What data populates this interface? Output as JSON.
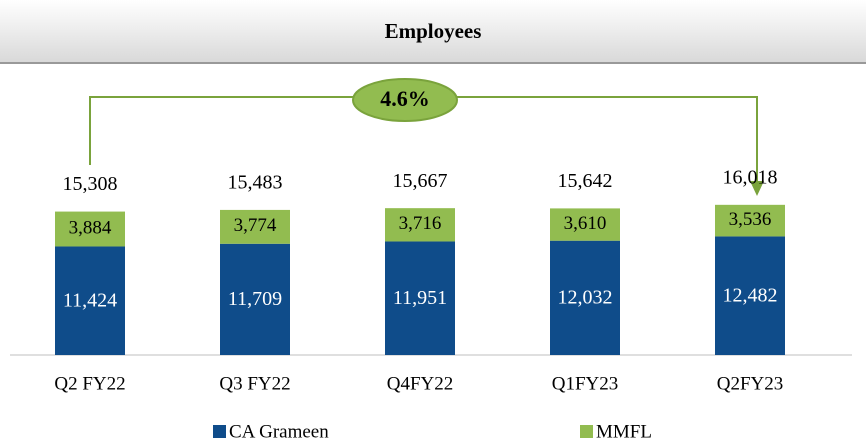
{
  "chart_data": {
    "type": "stacked_bar",
    "title": "Employees",
    "categories": [
      "Q2 FY22",
      "Q3 FY22",
      "Q4FY22",
      "Q1FY23",
      "Q2FY23"
    ],
    "series": [
      {
        "name": "CA Grameen",
        "color": "#0f4c8a",
        "values": [
          11424,
          11709,
          11951,
          12032,
          12482
        ],
        "value_labels": [
          "11,424",
          "11,709",
          "11,951",
          "12,032",
          "12,482"
        ]
      },
      {
        "name": "MMFL",
        "color": "#92bc50",
        "values": [
          3884,
          3774,
          3716,
          3610,
          3536
        ],
        "value_labels": [
          "3,884",
          "3,774",
          "3,716",
          "3,610",
          "3,536"
        ]
      }
    ],
    "totals": [
      "15,308",
      "15,483",
      "15,667",
      "15,642",
      "16,018"
    ],
    "annotation": "4.6%",
    "ylim": [
      0,
      20000
    ]
  }
}
